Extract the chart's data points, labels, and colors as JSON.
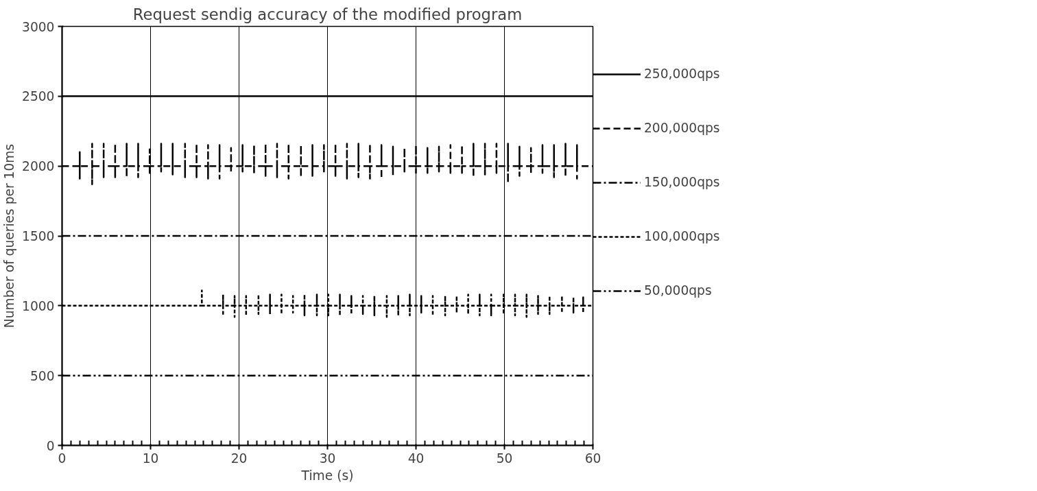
{
  "chart_data": {
    "type": "line",
    "title": "Request sendig accuracy of the modified program",
    "xlabel": "Time (s)",
    "ylabel": "Number of queries per 10ms",
    "xlim": [
      0,
      60
    ],
    "xticks": [
      0,
      10,
      20,
      30,
      40,
      50,
      60
    ],
    "ylim": [
      0,
      3000
    ],
    "yticks": [
      0,
      500,
      1000,
      1500,
      2000,
      2500,
      3000
    ],
    "grid": "x",
    "legend": "right",
    "marker": "none",
    "series": [
      {
        "name": "250,000qps",
        "color": "#000000",
        "line_style": "solid",
        "x": [
          0,
          60
        ],
        "values": [
          2500,
          2500
        ]
      },
      {
        "name": "200,000qps",
        "color": "#000000",
        "line_style": "dashed",
        "x": [
          0,
          2.0,
          2.0,
          2.0,
          2.0,
          3.4,
          3.4,
          3.4,
          3.4,
          4.7,
          4.7,
          4.7,
          4.7,
          6.0,
          6.0,
          6.0,
          6.0,
          7.3,
          7.3,
          7.3,
          7.3,
          8.6,
          8.6,
          8.6,
          8.6,
          9.9,
          9.9,
          9.9,
          9.9,
          11.2,
          11.2,
          11.2,
          11.2,
          12.5,
          12.5,
          12.5,
          12.5,
          13.9,
          13.9,
          13.9,
          13.9,
          15.2,
          15.2,
          15.2,
          15.2,
          16.5,
          16.5,
          16.5,
          16.5,
          17.8,
          17.8,
          17.8,
          17.8,
          19.1,
          19.1,
          19.1,
          19.1,
          20.4,
          20.4,
          20.4,
          20.4,
          21.7,
          21.7,
          21.7,
          21.7,
          23.0,
          23.0,
          23.0,
          23.0,
          24.3,
          24.3,
          24.3,
          24.3,
          25.6,
          25.6,
          25.6,
          25.6,
          27.0,
          27.0,
          27.0,
          27.0,
          28.3,
          28.3,
          28.3,
          28.3,
          29.6,
          29.6,
          29.6,
          29.6,
          30.9,
          30.9,
          30.9,
          30.9,
          32.2,
          32.2,
          32.2,
          32.2,
          33.5,
          33.5,
          33.5,
          33.5,
          34.8,
          34.8,
          34.8,
          34.8,
          36.1,
          36.1,
          36.1,
          36.1,
          37.4,
          37.4,
          37.4,
          37.4,
          38.7,
          38.7,
          38.7,
          38.7,
          40.0,
          40.0,
          40.0,
          40.0,
          41.3,
          41.3,
          41.3,
          41.3,
          42.6,
          42.6,
          42.6,
          42.6,
          43.9,
          43.9,
          43.9,
          43.9,
          45.2,
          45.2,
          45.2,
          45.2,
          46.5,
          46.5,
          46.5,
          46.5,
          47.8,
          47.8,
          47.8,
          47.8,
          49.1,
          49.1,
          49.1,
          49.1,
          50.4,
          50.4,
          50.4,
          50.4,
          51.7,
          51.7,
          51.7,
          51.7,
          53.0,
          53.0,
          53.0,
          53.0,
          54.3,
          54.3,
          54.3,
          54.3,
          55.6,
          55.6,
          55.6,
          55.6,
          56.9,
          56.9,
          56.9,
          56.9,
          58.2,
          58.2,
          58.2,
          58.2,
          60
        ],
        "values": [
          2000,
          2000,
          2100,
          1910,
          2000,
          2000,
          2160,
          1870,
          2000,
          2000,
          2160,
          1920,
          2000,
          2000,
          2160,
          1920,
          2000,
          2000,
          2160,
          1920,
          2000,
          2000,
          2160,
          1920,
          2000,
          2000,
          2120,
          1950,
          2000,
          2000,
          2160,
          1960,
          2000,
          2000,
          2160,
          1940,
          2000,
          2000,
          2160,
          1920,
          2000,
          2000,
          2160,
          1920,
          2000,
          2000,
          2150,
          1910,
          2000,
          2000,
          2150,
          1910,
          2000,
          2000,
          2130,
          1950,
          2000,
          2000,
          2150,
          1960,
          2000,
          2000,
          2150,
          1940,
          2000,
          2000,
          2160,
          1930,
          2000,
          2000,
          2160,
          1920,
          2000,
          2000,
          2160,
          1910,
          2000,
          2000,
          2150,
          1920,
          2000,
          2000,
          2150,
          1930,
          2000,
          2000,
          2150,
          1950,
          2000,
          2000,
          2160,
          1930,
          2000,
          2000,
          2160,
          1910,
          2000,
          2000,
          2160,
          1920,
          2000,
          2000,
          2160,
          1910,
          2000,
          2000,
          2150,
          1910,
          2000,
          2000,
          2140,
          1930,
          2000,
          2000,
          2130,
          1960,
          2000,
          2000,
          2150,
          1950,
          2000,
          2000,
          2130,
          1950,
          2000,
          2000,
          2140,
          1960,
          2000,
          2000,
          2150,
          1950,
          2000,
          2000,
          2150,
          1950,
          2000,
          2000,
          2160,
          1920,
          2000,
          2000,
          2160,
          1940,
          2000,
          2000,
          2160,
          1950,
          2000,
          2000,
          2160,
          1880,
          2000,
          2000,
          2140,
          1930,
          2000,
          2000,
          2130,
          1950,
          2000,
          2000,
          2150,
          1950,
          2000,
          2000,
          2150,
          1920,
          2000,
          2000,
          2160,
          1920,
          2000,
          2000,
          2150,
          1910,
          2000,
          2000
        ]
      },
      {
        "name": "150,000qps",
        "color": "#000000",
        "line_style": "dashdot",
        "x": [
          0,
          60
        ],
        "values": [
          1500,
          1500
        ]
      },
      {
        "name": "100,000qps",
        "color": "#000000",
        "line_style": "dotted",
        "x": [
          0,
          15.8,
          15.8,
          15.8,
          15.8,
          18.2,
          18.2,
          18.2,
          18.2,
          19.5,
          19.5,
          19.5,
          19.5,
          20.8,
          20.8,
          20.8,
          20.8,
          22.2,
          22.2,
          22.2,
          22.2,
          23.5,
          23.5,
          23.5,
          23.5,
          24.8,
          24.8,
          24.8,
          24.8,
          26.1,
          26.1,
          26.1,
          26.1,
          27.4,
          27.4,
          27.4,
          27.4,
          28.8,
          28.8,
          28.8,
          28.8,
          30.1,
          30.1,
          30.1,
          30.1,
          31.4,
          31.4,
          31.4,
          31.4,
          32.7,
          32.7,
          32.7,
          32.7,
          34.0,
          34.0,
          34.0,
          34.0,
          35.3,
          35.3,
          35.3,
          35.3,
          36.7,
          36.7,
          36.7,
          36.7,
          38.0,
          38.0,
          38.0,
          38.0,
          39.3,
          39.3,
          39.3,
          39.3,
          40.6,
          40.6,
          40.6,
          40.6,
          41.9,
          41.9,
          41.9,
          41.9,
          43.3,
          43.3,
          43.3,
          43.3,
          44.6,
          44.6,
          44.6,
          44.6,
          45.9,
          45.9,
          45.9,
          45.9,
          47.2,
          47.2,
          47.2,
          47.2,
          48.5,
          48.5,
          48.5,
          48.5,
          49.9,
          49.9,
          49.9,
          49.9,
          51.2,
          51.2,
          51.2,
          51.2,
          52.5,
          52.5,
          52.5,
          52.5,
          53.8,
          53.8,
          53.8,
          53.8,
          55.1,
          55.1,
          55.1,
          55.1,
          56.5,
          56.5,
          56.5,
          56.5,
          57.8,
          57.8,
          57.8,
          57.8,
          58.9,
          58.9,
          58.9,
          58.9,
          60
        ],
        "values": [
          1000,
          1000,
          1110,
          1000,
          1000,
          1000,
          1080,
          930,
          1000,
          1000,
          1070,
          920,
          1000,
          1000,
          1070,
          930,
          1000,
          1000,
          1080,
          940,
          1000,
          1000,
          1080,
          940,
          1000,
          1000,
          1080,
          940,
          1000,
          1000,
          1070,
          950,
          1000,
          1000,
          1080,
          930,
          1000,
          1000,
          1080,
          930,
          1000,
          1000,
          1080,
          930,
          1000,
          1000,
          1080,
          930,
          1000,
          1000,
          1070,
          940,
          1000,
          1000,
          1070,
          940,
          1000,
          1000,
          1070,
          930,
          1000,
          1000,
          1070,
          920,
          1000,
          1000,
          1070,
          930,
          1000,
          1000,
          1080,
          930,
          1000,
          1000,
          1070,
          950,
          1000,
          1000,
          1070,
          930,
          1000,
          1000,
          1070,
          930,
          1000,
          1000,
          1070,
          950,
          1000,
          1000,
          1080,
          940,
          1000,
          1000,
          1080,
          930,
          1000,
          1000,
          1080,
          930,
          1000,
          1000,
          1080,
          940,
          1000,
          1000,
          1080,
          930,
          1000,
          1000,
          1080,
          920,
          1000,
          1000,
          1070,
          940,
          1000,
          1000,
          1070,
          940,
          1000,
          1000,
          1070,
          950,
          1000,
          1000,
          1060,
          950,
          1000,
          1000,
          1060,
          950,
          1000,
          1000
        ]
      },
      {
        "name": "50,000qps",
        "color": "#000000",
        "line_style": "dashdotdot",
        "x": [
          0,
          60
        ],
        "values": [
          500,
          500
        ]
      }
    ]
  }
}
